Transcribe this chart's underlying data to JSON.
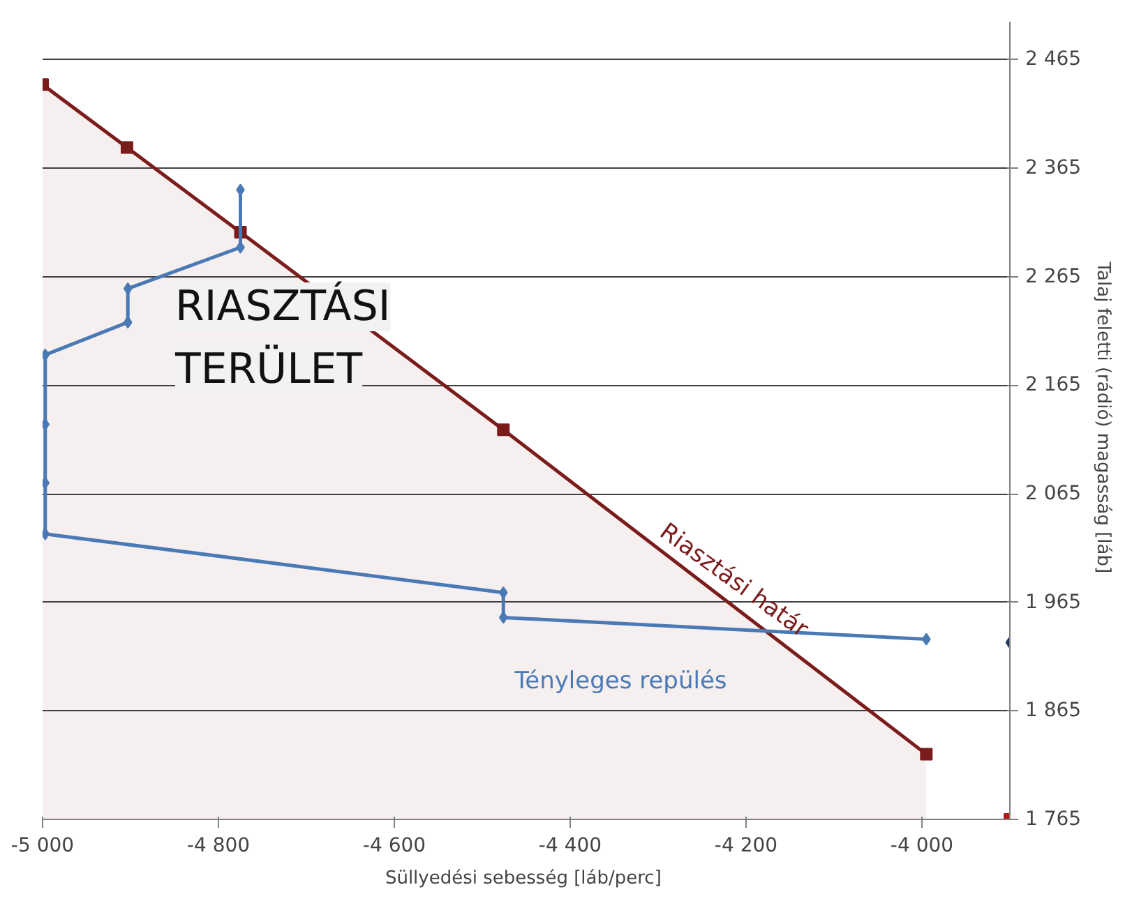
{
  "chart_data": {
    "type": "line",
    "xlabel": "Süllyedési sebesség  [láb/perc]",
    "ylabel": "Talaj  feletti (rádió) magasság [láb]",
    "xlim": [
      -5000,
      -3900
    ],
    "ylim": [
      1765,
      2500
    ],
    "xticks": [
      {
        "value": -5000,
        "label": "-5 000"
      },
      {
        "value": -4800,
        "label": "-4 800"
      },
      {
        "value": -4600,
        "label": "-4 600"
      },
      {
        "value": -4400,
        "label": "-4 400"
      },
      {
        "value": -4200,
        "label": "-4 200"
      },
      {
        "value": -4000,
        "label": "-4 000"
      }
    ],
    "yticks": [
      {
        "value": 1765,
        "label": "1 765"
      },
      {
        "value": 1865,
        "label": "1 865"
      },
      {
        "value": 1965,
        "label": "1 965"
      },
      {
        "value": 2065,
        "label": "2 065"
      },
      {
        "value": 2165,
        "label": "2 165"
      },
      {
        "value": 2265,
        "label": "2 265"
      },
      {
        "value": 2365,
        "label": "2 365"
      },
      {
        "value": 2465,
        "label": "2 465"
      }
    ],
    "grid": "y",
    "series": [
      {
        "type": "area",
        "name": "Riasztási határ",
        "color": "#7b1c1c",
        "marker": "square",
        "x": [
          -5000,
          -4904,
          -4775,
          -4476,
          -3995
        ],
        "values": [
          2442,
          2384,
          2306,
          2124,
          1825
        ]
      },
      {
        "name": "Tényleges repülés",
        "color": "#4a7ab5",
        "marker": "diamond",
        "x": [
          -4775,
          -4775,
          -4903,
          -4903,
          -4997,
          -4997,
          -4997,
          -4997,
          -4476,
          -4476,
          -3995
        ],
        "values": [
          2345,
          2292,
          2254,
          2223,
          2193,
          2129,
          2075,
          2028,
          1974,
          1951,
          1931
        ]
      },
      {
        "type": "scatter",
        "color": "#1f3864",
        "marker": "diamond",
        "x": [
          -3900
        ],
        "values": [
          1928
        ]
      },
      {
        "type": "scatter",
        "color": "#b01c1c",
        "marker": "square",
        "x": [
          -3900
        ],
        "values": [
          1765
        ]
      }
    ],
    "annotations": [
      "RIASZTÁSI TERÜLET"
    ]
  }
}
